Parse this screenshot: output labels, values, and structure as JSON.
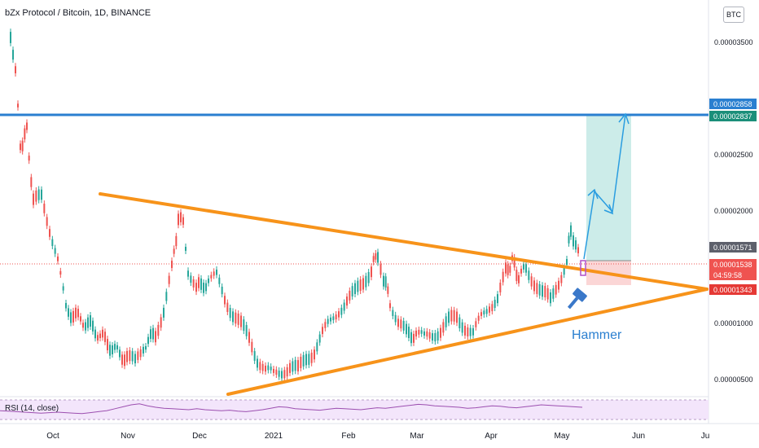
{
  "header": {
    "title": "bZx Protocol / Bitcoin, 1D, BINANCE",
    "currency": "BTC"
  },
  "rsi": {
    "label": "RSI (14, close)"
  },
  "colors": {
    "up": "#26a69a",
    "down": "#ef5350",
    "triangle": "#f7931a",
    "resistance": "#2a7fd0",
    "target_zone": "#b7e4df",
    "stop_zone": "#f9c5c5",
    "rsi_line": "#9c4fb0",
    "rsi_bg": "#f3e5fb"
  },
  "chart_data": {
    "type": "candlestick",
    "instrument": "bZx Protocol / Bitcoin",
    "timeframe": "1D",
    "exchange": "BINANCE",
    "x_ticks": [
      "Oct",
      "Nov",
      "Dec",
      "2021",
      "Feb",
      "Mar",
      "Apr",
      "May",
      "Jun",
      "Ju"
    ],
    "y_ticks": [
      "0.00003500",
      "0.00002500",
      "0.00002000",
      "0.00001000",
      "0.00000500"
    ],
    "ylim": [
      3.5e-06,
      3.85e-05
    ],
    "price_tags": [
      {
        "label": "0.00002858",
        "value": 2.858e-05,
        "color": "#2a7fd0"
      },
      {
        "label": "0.00002837",
        "value": 2.837e-05,
        "color": "#1b8f7a"
      },
      {
        "label": "0.00001571",
        "value": 1.571e-05,
        "color": "#5d606b"
      },
      {
        "label": "0.00001538",
        "value": 1.538e-05,
        "color": "#ef5350"
      },
      {
        "label": "04:59:58",
        "value": 1.47e-05,
        "color": "#ef5350"
      },
      {
        "label": "0.00001343",
        "value": 1.343e-05,
        "color": "#e53935"
      }
    ],
    "resistance_level": 2.858e-05,
    "triangle": {
      "upper": [
        [
          0.0,
          2.16e-05
        ],
        [
          1.0,
          1.32e-05
        ]
      ],
      "lower": [
        [
          0.0,
          3e-06
        ],
        [
          1.0,
          1.32e-05
        ]
      ]
    },
    "annotation": "Hammer",
    "rsi_values": [
      48,
      47,
      46,
      45,
      44,
      43,
      44,
      45,
      44,
      43,
      42,
      44,
      46,
      48,
      52,
      56,
      60,
      62,
      58,
      55,
      53,
      52,
      51,
      50,
      52,
      50,
      49,
      48,
      49,
      47,
      46,
      48,
      50,
      53,
      56,
      55,
      52,
      51,
      50,
      49,
      51,
      53,
      52,
      51,
      50,
      52,
      54,
      53,
      55,
      57,
      59,
      61,
      60,
      58,
      57,
      56,
      55,
      53,
      54,
      56,
      58,
      57,
      55,
      54,
      56,
      58,
      60,
      59,
      58,
      57,
      56,
      55
    ]
  }
}
